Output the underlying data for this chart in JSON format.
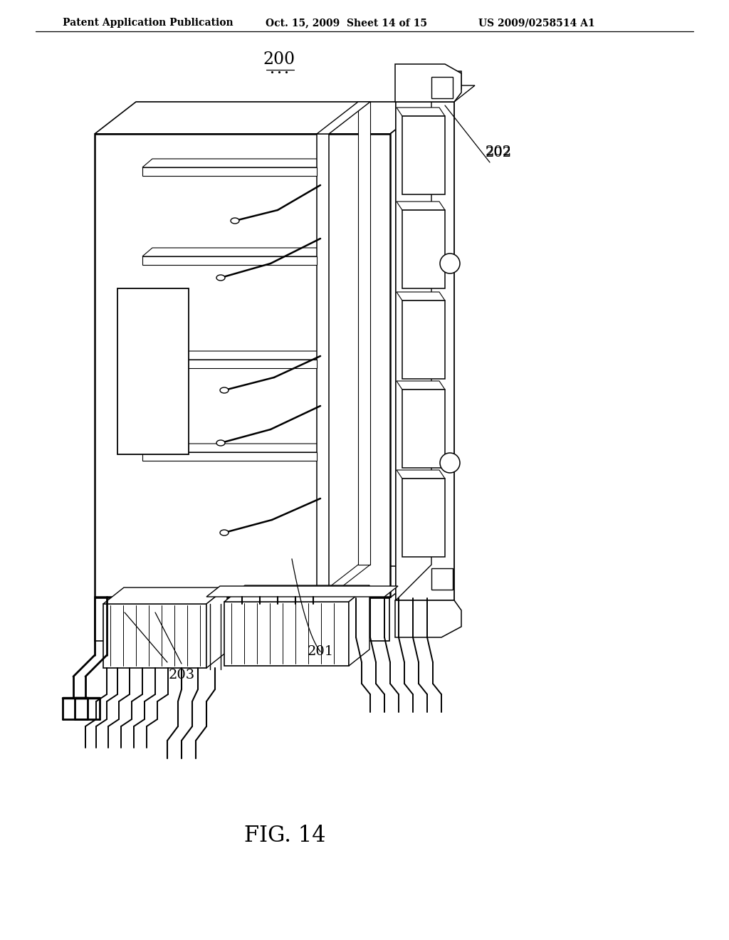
{
  "background_color": "#ffffff",
  "header_left": "Patent Application Publication",
  "header_mid": "Oct. 15, 2009  Sheet 14 of 15",
  "header_right": "US 2009/0258514 A1",
  "figure_label": "FIG. 14",
  "ref_200": "200",
  "ref_201": "201",
  "ref_202": "202",
  "ref_203": "203",
  "line_color": "#000000",
  "lw_main": 1.3,
  "lw_thin": 0.8,
  "lw_thick": 1.8
}
